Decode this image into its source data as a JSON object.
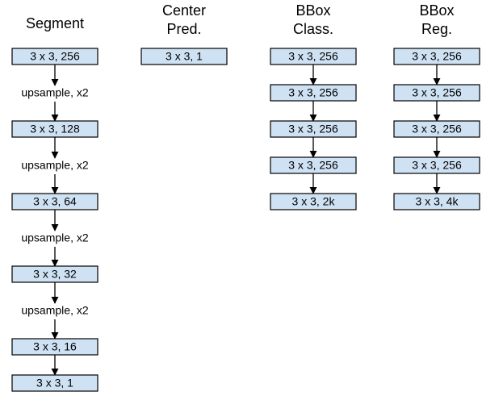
{
  "columns": [
    {
      "title": [
        "Segment"
      ],
      "layers": [
        "3 x 3, 256",
        "3 x 3, 128",
        "3 x 3, 64",
        "3 x 3, 32",
        "3 x 3, 16",
        "3 x 3, 1"
      ],
      "ops": [
        "upsample, x2",
        "upsample, x2",
        "upsample, x2",
        "upsample, x2"
      ]
    },
    {
      "title": [
        "Center",
        "Pred."
      ],
      "layers": [
        "3 x 3, 1"
      ]
    },
    {
      "title": [
        "BBox",
        "Class."
      ],
      "layers": [
        "3 x 3, 256",
        "3 x 3, 256",
        "3 x 3, 256",
        "3 x 3, 256",
        "3 x 3, 2k"
      ]
    },
    {
      "title": [
        "BBox",
        "Reg."
      ],
      "layers": [
        "3 x 3, 256",
        "3 x 3, 256",
        "3 x 3, 256",
        "3 x 3, 256",
        "3 x 3, 4k"
      ]
    }
  ]
}
